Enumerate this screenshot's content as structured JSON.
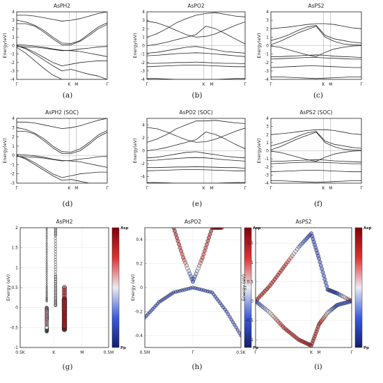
{
  "chart_data": [
    {
      "panel": "a",
      "caption": "(a)",
      "type": "line",
      "title": "AsPH2",
      "ylabel": "Energy(eV)",
      "ylim": [
        -4,
        4
      ],
      "y_ticks": [
        4,
        3,
        2,
        1,
        0,
        -1,
        -2,
        -3,
        -4
      ],
      "k_points": [
        {
          "label": "Γ",
          "k": 0
        },
        {
          "label": "K",
          "k": 0.58
        },
        {
          "label": "M",
          "k": 0.66
        },
        {
          "label": "Γ",
          "k": 1
        }
      ],
      "bands": [
        [
          3.0,
          2.8,
          2.4,
          1.8,
          1.0,
          0.3,
          0.25,
          0.6,
          1.4,
          2.2,
          2.7
        ],
        [
          2.6,
          2.6,
          2.3,
          1.6,
          0.8,
          0.1,
          0.1,
          0.5,
          1.2,
          2.0,
          2.5
        ],
        [
          3.6,
          3.6,
          3.5,
          3.3,
          3.1,
          2.9,
          3.0,
          3.2,
          3.5,
          3.8,
          4.0
        ],
        [
          -0.1,
          -0.15,
          -0.2,
          -0.3,
          -0.45,
          -0.6,
          -0.55,
          -0.4,
          -0.3,
          -0.15,
          -0.1
        ],
        [
          0.1,
          0.05,
          -0.05,
          -0.2,
          -0.4,
          -0.55,
          -0.6,
          -0.7,
          -0.9,
          -1.1,
          -1.3
        ],
        [
          0.0,
          -0.4,
          -1.0,
          -1.7,
          -2.4,
          -3.0,
          -2.8,
          -3.1,
          -3.4,
          -3.6,
          -4.0
        ],
        [
          -0.2,
          -0.9,
          -1.8,
          -2.7,
          -3.5,
          -4.0,
          -4.0,
          -4.0,
          -4.0,
          -4.0,
          -4.0
        ],
        [
          -0.05,
          -0.3,
          -0.8,
          -1.4,
          -2.0,
          -2.4,
          -2.2,
          -2.0,
          -1.9,
          -1.8,
          -1.8
        ]
      ]
    },
    {
      "panel": "b",
      "caption": "(b)",
      "type": "line",
      "title": "AsPO2",
      "ylabel": "Energy(eV)",
      "ylim": [
        -4,
        4
      ],
      "y_ticks": [
        4,
        3,
        2,
        1,
        0,
        -1,
        -2,
        -3,
        -4
      ],
      "k_points": [
        {
          "label": "Γ",
          "k": 0
        },
        {
          "label": "K",
          "k": 0.58
        },
        {
          "label": "M",
          "k": 0.66
        },
        {
          "label": "Γ",
          "k": 1
        }
      ],
      "bands": [
        [
          2.9,
          2.7,
          2.3,
          1.8,
          1.3,
          1.0,
          1.1,
          1.4,
          1.9,
          2.4,
          2.8
        ],
        [
          1.0,
          1.4,
          2.0,
          2.7,
          3.2,
          3.6,
          3.8,
          3.9,
          3.7,
          3.5,
          3.4
        ],
        [
          0.0,
          0.15,
          0.4,
          0.7,
          1.0,
          1.3,
          2.3,
          2.0,
          1.4,
          0.8,
          0.2
        ],
        [
          -0.9,
          -0.8,
          -0.6,
          -0.4,
          -0.2,
          -0.1,
          -0.3,
          -0.5,
          -0.7,
          -0.8,
          -0.9
        ],
        [
          -1.2,
          -1.15,
          -1.05,
          -0.95,
          -0.9,
          -0.85,
          -0.9,
          -1.0,
          -1.1,
          -1.2,
          -1.3
        ],
        [
          -2.1,
          -2.1,
          -2.05,
          -2.0,
          -2.0,
          -1.95,
          -2.0,
          -2.05,
          -2.1,
          -2.1,
          -2.15
        ],
        [
          -2.5,
          -2.45,
          -2.4,
          -2.35,
          -2.3,
          -2.3,
          -2.35,
          -2.4,
          -2.45,
          -2.5,
          -2.5
        ],
        [
          -3.9,
          -3.9,
          -3.95,
          -4.0,
          -4.0,
          -4.0,
          -4.0,
          -4.0,
          -3.95,
          -3.9,
          -3.9
        ]
      ]
    },
    {
      "panel": "c",
      "caption": "(c)",
      "type": "line",
      "title": "AsPS2",
      "ylabel": "Energy(eV)",
      "ylim": [
        -4,
        4
      ],
      "y_ticks": [
        4,
        3,
        2,
        1,
        0,
        -1,
        -2,
        -3,
        -4
      ],
      "k_points": [
        {
          "label": "Γ",
          "k": 0
        },
        {
          "label": "K",
          "k": 0.58
        },
        {
          "label": "M",
          "k": 0.66
        },
        {
          "label": "Γ",
          "k": 1
        }
      ],
      "bands": [
        [
          2.0,
          2.1,
          2.2,
          2.35,
          2.5,
          2.6,
          2.6,
          2.5,
          2.3,
          2.1,
          2.0
        ],
        [
          0.6,
          0.9,
          1.3,
          1.8,
          2.2,
          2.4,
          1.2,
          0.8,
          0.6,
          0.4,
          0.3
        ],
        [
          0.1,
          0.5,
          1.0,
          1.5,
          1.9,
          2.3,
          1.0,
          0.5,
          0.2,
          0.1,
          0.05
        ],
        [
          -0.05,
          -0.2,
          -0.5,
          -0.8,
          -1.1,
          -1.3,
          -0.8,
          -0.4,
          -0.2,
          -0.05,
          0.0
        ],
        [
          -1.3,
          -1.3,
          -1.25,
          -1.2,
          -1.15,
          -1.1,
          -1.15,
          -1.25,
          -1.3,
          -1.35,
          -1.4
        ],
        [
          -1.6,
          -1.55,
          -1.5,
          -1.45,
          -1.4,
          -1.4,
          -1.45,
          -1.5,
          -1.55,
          -1.6,
          -1.6
        ],
        [
          -2.6,
          -2.55,
          -2.5,
          -2.45,
          -2.4,
          -2.4,
          -2.45,
          -2.5,
          -2.55,
          -2.6,
          -2.6
        ],
        [
          -3.7,
          -3.7,
          -3.75,
          -3.8,
          -3.85,
          -3.9,
          -3.85,
          -3.8,
          -3.75,
          -3.7,
          -3.7
        ]
      ]
    },
    {
      "panel": "d",
      "caption": "(d)",
      "type": "line",
      "title": "AsPH2 (SOC)",
      "ylabel": "Energy(eV)",
      "ylim": [
        -3,
        4
      ],
      "y_ticks": [
        4,
        3,
        2,
        1,
        0,
        -1,
        -2,
        -3
      ],
      "k_points": [
        {
          "label": "Γ",
          "k": 0
        },
        {
          "label": "K",
          "k": 0.58
        },
        {
          "label": "M",
          "k": 0.66
        },
        {
          "label": "Γ",
          "k": 1
        }
      ],
      "bands": [
        [
          3.0,
          2.8,
          2.4,
          1.8,
          1.0,
          0.4,
          0.35,
          0.7,
          1.4,
          2.2,
          2.7
        ],
        [
          2.6,
          2.6,
          2.3,
          1.6,
          0.8,
          0.2,
          0.2,
          0.5,
          1.2,
          2.0,
          2.5
        ],
        [
          3.6,
          3.6,
          3.5,
          3.3,
          3.1,
          2.9,
          3.0,
          3.2,
          3.5,
          3.8,
          4.0
        ],
        [
          -0.1,
          -0.15,
          -0.2,
          -0.3,
          -0.45,
          -0.6,
          -0.55,
          -0.4,
          -0.3,
          -0.15,
          -0.1
        ],
        [
          0.1,
          0.05,
          -0.05,
          -0.2,
          -0.4,
          -0.55,
          -0.6,
          -0.7,
          -0.9,
          -1.1,
          -1.3
        ],
        [
          0.0,
          -0.4,
          -1.0,
          -1.6,
          -2.2,
          -2.7,
          -2.6,
          -2.8,
          -3.0,
          -3.0,
          -3.0
        ],
        [
          -0.05,
          -0.3,
          -0.8,
          -1.4,
          -2.0,
          -2.4,
          -2.2,
          -2.0,
          -1.9,
          -1.8,
          -1.8
        ]
      ]
    },
    {
      "panel": "e",
      "caption": "(e)",
      "type": "line",
      "title": "AsPO2 (SOC)",
      "ylabel": "Energy(eV)",
      "ylim": [
        -5,
        5
      ],
      "y_ticks": [
        4,
        2,
        0,
        -2,
        -4
      ],
      "k_points": [
        {
          "label": "Γ",
          "k": 0
        },
        {
          "label": "K",
          "k": 0.58
        },
        {
          "label": "M",
          "k": 0.66
        },
        {
          "label": "Γ",
          "k": 1
        }
      ],
      "bands": [
        [
          3.6,
          3.4,
          2.9,
          2.3,
          1.7,
          1.3,
          1.4,
          1.8,
          2.4,
          3.0,
          3.5
        ],
        [
          1.3,
          1.8,
          2.5,
          3.4,
          4.0,
          4.6,
          4.6,
          4.7,
          4.5,
          4.3,
          4.2
        ],
        [
          0.0,
          0.2,
          0.5,
          0.9,
          1.3,
          1.7,
          2.9,
          2.5,
          1.8,
          1.0,
          0.3
        ],
        [
          -1.1,
          -1.0,
          -0.75,
          -0.5,
          -0.25,
          -0.15,
          -0.4,
          -0.6,
          -0.85,
          -1.0,
          -1.1
        ],
        [
          -1.5,
          -1.45,
          -1.3,
          -1.2,
          -1.1,
          -1.05,
          -1.1,
          -1.25,
          -1.4,
          -1.5,
          -1.6
        ],
        [
          -2.6,
          -2.6,
          -2.55,
          -2.5,
          -2.5,
          -2.45,
          -2.5,
          -2.55,
          -2.6,
          -2.6,
          -2.7
        ],
        [
          -3.1,
          -3.05,
          -3.0,
          -2.95,
          -2.9,
          -2.9,
          -2.95,
          -3.0,
          -3.05,
          -3.1,
          -3.1
        ],
        [
          -4.9,
          -4.9,
          -4.95,
          -5.0,
          -5.0,
          -5.0,
          -5.0,
          -5.0,
          -4.95,
          -4.9,
          -4.9
        ]
      ]
    },
    {
      "panel": "f",
      "caption": "(f)",
      "type": "line",
      "title": "AsPS2 (SOC)",
      "ylabel": "Energy(eV)",
      "ylim": [
        -4,
        4
      ],
      "y_ticks": [
        4,
        3,
        2,
        1,
        0,
        -1,
        -2,
        -3,
        -4
      ],
      "k_points": [
        {
          "label": "Γ",
          "k": 0
        },
        {
          "label": "K",
          "k": 0.58
        },
        {
          "label": "M",
          "k": 0.66
        },
        {
          "label": "Γ",
          "k": 1
        }
      ],
      "bands": [
        [
          2.0,
          2.1,
          2.2,
          2.35,
          2.5,
          2.6,
          2.6,
          2.5,
          2.3,
          2.1,
          2.0
        ],
        [
          0.6,
          0.9,
          1.3,
          1.8,
          2.2,
          2.4,
          1.2,
          0.8,
          0.6,
          0.4,
          0.3
        ],
        [
          0.1,
          0.5,
          1.0,
          1.5,
          1.9,
          2.3,
          1.0,
          0.5,
          0.2,
          0.1,
          0.05
        ],
        [
          -0.05,
          -0.2,
          -0.5,
          -0.8,
          -1.1,
          -1.3,
          -0.8,
          -0.4,
          -0.2,
          -0.05,
          0.0
        ],
        [
          -1.3,
          -1.3,
          -1.25,
          -1.2,
          -1.15,
          -1.1,
          -1.15,
          -1.25,
          -1.3,
          -1.35,
          -1.4
        ],
        [
          -1.6,
          -1.55,
          -1.5,
          -1.45,
          -1.4,
          -1.4,
          -1.45,
          -1.5,
          -1.55,
          -1.6,
          -1.6
        ],
        [
          -2.6,
          -2.55,
          -2.5,
          -2.45,
          -2.4,
          -2.4,
          -2.45,
          -2.5,
          -2.55,
          -2.6,
          -2.6
        ],
        [
          -3.7,
          -3.7,
          -3.75,
          -3.8,
          -3.85,
          -3.9,
          -3.85,
          -3.8,
          -3.75,
          -3.7,
          -3.7
        ]
      ]
    },
    {
      "panel": "g",
      "caption": "(g)",
      "type": "scatter",
      "title": "AsPH2",
      "ylabel": "Energy (eV)",
      "ylim": [
        -1.0,
        2.0
      ],
      "y_ticks": [
        2.0,
        1.5,
        1.0,
        0.5,
        0.0,
        -0.5,
        -1.0
      ],
      "x_ticks": [
        {
          "label": "0.5K",
          "x": 0
        },
        {
          "label": "K",
          "x": 0.38
        },
        {
          "label": "M",
          "x": 0.7
        },
        {
          "label": "0.5M",
          "x": 1
        }
      ],
      "colorbar": {
        "top_label": "Asp",
        "bottom_label": "Pp"
      },
      "bands": [
        {
          "w": [
            0.3,
            0.3,
            0.3,
            0.3,
            0.3,
            0.3,
            0.3,
            0.3,
            0.3,
            0.3,
            0.3
          ],
          "e": [
            2.0,
            1.5,
            1.0,
            0.55,
            0.25,
            0.15,
            0.4,
            0.85,
            1.4,
            2.0,
            2.0
          ],
          "proj": [
            0.5,
            0.5,
            0.5,
            0.5,
            0.5,
            0.5,
            0.5,
            0.5,
            0.5,
            0.5,
            0.5
          ],
          "size": 0.1
        },
        {
          "w": [
            0.4,
            0.4,
            0.4,
            0.4,
            0.4,
            0.4,
            0.4,
            0.4,
            0.4,
            0.4,
            0.4
          ],
          "e": [
            0.8,
            0.55,
            0.35,
            0.15,
            0.05,
            0.05,
            0.25,
            0.65,
            1.2,
            1.8,
            2.0
          ],
          "proj": [
            0.5,
            0.5,
            0.5,
            0.5,
            0.5,
            0.5,
            0.5,
            0.5,
            0.5,
            0.5,
            0.5
          ],
          "size": 0.3
        },
        {
          "w": [
            0.3,
            0.3,
            0.3,
            0.3,
            0.3,
            0.3,
            0.3,
            0.3,
            0.3,
            0.3,
            0.3
          ],
          "e": [
            -0.3,
            -0.25,
            -0.2,
            -0.1,
            0.0,
            -0.1,
            -0.3,
            -0.5,
            -0.6,
            -0.55,
            -0.5
          ],
          "proj": [
            0.5,
            0.5,
            0.5,
            0.5,
            0.5,
            0.6,
            0.6,
            0.6,
            0.5,
            0.5,
            0.5
          ],
          "size": 0.5
        },
        {
          "w": [
            0.5,
            0.5,
            0.5,
            0.5,
            0.5,
            0.5,
            0.5,
            0.5,
            0.5,
            0.5,
            0.5
          ],
          "e": [
            -0.1,
            0.0,
            0.1,
            0.2,
            0.15,
            -0.1,
            -0.35,
            -0.55,
            -0.45,
            -0.1,
            0.5
          ],
          "proj": [
            0.5,
            0.55,
            0.6,
            0.65,
            0.65,
            0.7,
            0.75,
            0.8,
            0.85,
            0.9,
            0.95
          ],
          "size": 0.8
        }
      ]
    },
    {
      "panel": "h",
      "caption": "(h)",
      "type": "scatter",
      "title": "AsPO2",
      "ylabel": "Energy (eV)",
      "ylim": [
        -0.5,
        0.5
      ],
      "y_ticks": [
        0.4,
        0.2,
        0.0,
        -0.2,
        -0.4
      ],
      "x_ticks": [
        {
          "label": "0.5M",
          "x": 0
        },
        {
          "label": "Γ",
          "x": 0.5
        },
        {
          "label": "0.5K",
          "x": 1
        }
      ],
      "colorbar": {
        "top_label": "Asp",
        "bottom_label": "Pp"
      },
      "bands": [
        {
          "w": [
            0.3,
            0.4,
            0.5,
            0.6,
            0.7,
            0.8
          ],
          "e": [
            0.5,
            0.25,
            0.05,
            0.25,
            0.5,
            0.5
          ],
          "proj": [
            0.95,
            0.75,
            0.2,
            0.75,
            0.95,
            0.95
          ],
          "size": 0.6
        },
        {
          "w": [
            0.0,
            0.15,
            0.3,
            0.5,
            0.7,
            0.85,
            1.0
          ],
          "e": [
            -0.25,
            -0.12,
            -0.04,
            0.0,
            -0.04,
            -0.2,
            -0.4
          ],
          "proj": [
            0.2,
            0.2,
            0.2,
            0.2,
            0.2,
            0.2,
            0.2
          ],
          "size": 0.5
        }
      ]
    },
    {
      "panel": "i",
      "caption": "(i)",
      "type": "scatter",
      "title": "AsPS2",
      "ylabel": "Energy (eV)",
      "ylim": [
        -1.2,
        1.9
      ],
      "y_ticks": [
        1.5,
        1.0,
        0.5,
        0.0,
        -0.5,
        -1.0
      ],
      "x_ticks": [
        {
          "label": "Γ",
          "x": 0
        },
        {
          "label": "K",
          "x": 0.58
        },
        {
          "label": "M",
          "x": 0.66
        },
        {
          "label": "Γ",
          "x": 1
        }
      ],
      "colorbar": {
        "top_label": "Asp",
        "bottom_label": "Pp"
      },
      "bands": [
        {
          "w": [
            0.0,
            0.15,
            0.3,
            0.45,
            0.58,
            0.66,
            0.75,
            0.85,
            1.0
          ],
          "e": [
            0.0,
            0.4,
            0.9,
            1.4,
            1.75,
            1.1,
            0.3,
            0.2,
            0.0
          ],
          "proj": [
            0.8,
            0.8,
            0.8,
            0.4,
            0.2,
            0.2,
            0.2,
            0.2,
            0.8
          ],
          "size": 0.6
        },
        {
          "w": [
            0.0,
            0.15,
            0.3,
            0.45,
            0.58,
            0.66,
            0.75,
            0.85,
            1.0
          ],
          "e": [
            0.0,
            -0.3,
            -0.7,
            -1.0,
            -1.15,
            -0.6,
            -0.3,
            -0.1,
            0.0
          ],
          "proj": [
            0.2,
            0.5,
            0.8,
            0.8,
            0.9,
            0.8,
            0.5,
            0.2,
            0.2
          ],
          "size": 0.6
        }
      ]
    }
  ]
}
